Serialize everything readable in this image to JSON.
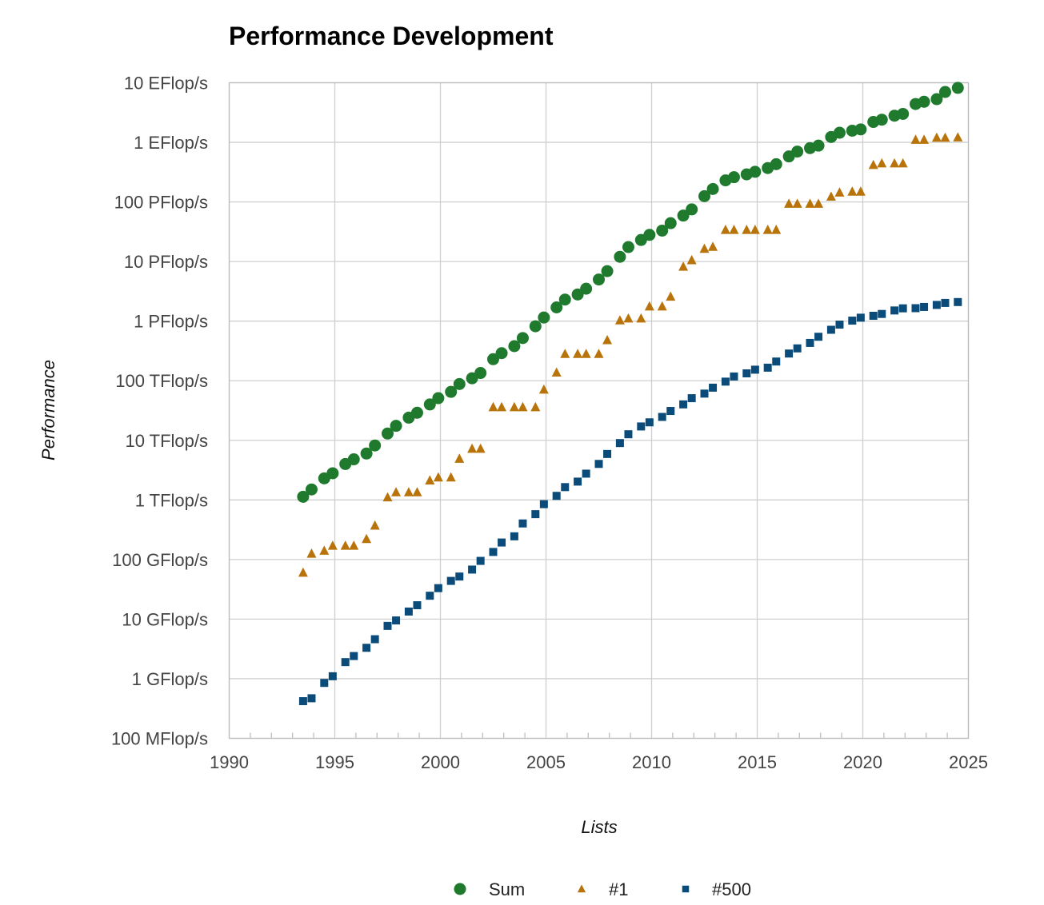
{
  "chart_data": {
    "type": "scatter",
    "title": "Performance Development",
    "xlabel": "Lists",
    "ylabel": "Performance",
    "xlim": [
      1990,
      2025
    ],
    "x_ticks": [
      "1990",
      "1995",
      "2000",
      "2005",
      "2010",
      "2015",
      "2020",
      "2025"
    ],
    "y_scale": "log",
    "ylim_gflops": [
      0.1,
      10000000000
    ],
    "y_ticks": [
      {
        "value": 0.1,
        "label": "100 MFlop/s"
      },
      {
        "value": 1,
        "label": "1 GFlop/s"
      },
      {
        "value": 10,
        "label": "10 GFlop/s"
      },
      {
        "value": 100,
        "label": "100 GFlop/s"
      },
      {
        "value": 1000,
        "label": "1 TFlop/s"
      },
      {
        "value": 10000,
        "label": "10 TFlop/s"
      },
      {
        "value": 100000,
        "label": "100 TFlop/s"
      },
      {
        "value": 1000000,
        "label": "1 PFlop/s"
      },
      {
        "value": 10000000,
        "label": "10 PFlop/s"
      },
      {
        "value": 100000000,
        "label": "100 PFlop/s"
      },
      {
        "value": 1000000000,
        "label": "1 EFlop/s"
      },
      {
        "value": 10000000000,
        "label": "10 EFlop/s"
      }
    ],
    "y_unit": "GFlop/s",
    "grid": true,
    "legend_position": "bottom",
    "x": [
      1993.5,
      1993.9,
      1994.5,
      1994.9,
      1995.5,
      1995.9,
      1996.5,
      1996.9,
      1997.5,
      1997.9,
      1998.5,
      1998.9,
      1999.5,
      1999.9,
      2000.5,
      2000.9,
      2001.5,
      2001.9,
      2002.5,
      2002.9,
      2003.5,
      2003.9,
      2004.5,
      2004.9,
      2005.5,
      2005.9,
      2006.5,
      2006.9,
      2007.5,
      2007.9,
      2008.5,
      2008.9,
      2009.5,
      2009.9,
      2010.5,
      2010.9,
      2011.5,
      2011.9,
      2012.5,
      2012.9,
      2013.5,
      2013.9,
      2014.5,
      2014.9,
      2015.5,
      2015.9,
      2016.5,
      2016.9,
      2017.5,
      2017.9,
      2018.5,
      2018.9,
      2019.5,
      2019.9,
      2020.5,
      2020.9,
      2021.5,
      2021.9,
      2022.5,
      2022.9,
      2023.5,
      2023.9,
      2024.5
    ],
    "series": [
      {
        "name": "Sum",
        "marker": "circle",
        "color": "#1f7a2e",
        "values": [
          1130,
          1500,
          2300,
          2800,
          4000,
          4800,
          6000,
          8200,
          13000,
          17500,
          24000,
          29000,
          40000,
          51000,
          65000,
          88000,
          110000,
          135000,
          230000,
          290000,
          380000,
          520000,
          820000,
          1150000,
          1700000,
          2300000,
          2800000,
          3500000,
          5000000,
          6900000,
          12000000,
          17500000,
          23000000,
          28000000,
          33000000,
          44000000,
          59000000,
          75000000,
          125000000,
          165000000,
          230000000,
          260000000,
          290000000,
          320000000,
          370000000,
          430000000,
          580000000,
          700000000,
          800000000,
          880000000,
          1230000000,
          1450000000,
          1570000000,
          1650000000,
          2200000000,
          2400000000,
          2800000000,
          3000000000,
          4400000000,
          4800000000,
          5300000000,
          7000000000,
          8200000000
        ]
      },
      {
        "name": "#1",
        "marker": "triangle",
        "color": "#b8740a",
        "values": [
          60,
          125,
          140,
          170,
          170,
          170,
          220,
          370,
          1100,
          1340,
          1340,
          1340,
          2120,
          2380,
          2380,
          4900,
          7200,
          7200,
          35900,
          35900,
          35900,
          35900,
          35900,
          70700,
          136800,
          280600,
          280600,
          280600,
          280600,
          478200,
          1026000,
          1105000,
          1105000,
          1759000,
          1759000,
          2566000,
          8162000,
          10510000,
          16320000,
          17590000,
          33860000,
          33860000,
          33860000,
          33860000,
          33860000,
          33860000,
          93010000,
          93010000,
          93010000,
          93010000,
          122300000,
          143500000,
          148600000,
          148600000,
          415500000,
          442000000,
          442000000,
          442000000,
          1102000000,
          1102000000,
          1194000000,
          1194000000,
          1206000000
        ]
      },
      {
        "name": "#500",
        "marker": "square",
        "color": "#0b4b7a",
        "values": [
          0.42,
          0.47,
          0.85,
          1.1,
          1.9,
          2.4,
          3.3,
          4.6,
          7.7,
          9.5,
          13.4,
          17.1,
          24.7,
          33.1,
          43.8,
          51.8,
          67.8,
          94.9,
          134,
          193,
          245,
          403,
          577,
          849,
          1170,
          1640,
          2030,
          2760,
          4020,
          5900,
          9000,
          12640,
          17090,
          20050,
          24700,
          31100,
          40100,
          50940,
          60800,
          76500,
          96600,
          117800,
          133000,
          153300,
          165600,
          210000,
          286000,
          349000,
          431000,
          547000,
          716000,
          874000,
          1020000,
          1142000,
          1230000,
          1320000,
          1510000,
          1640000,
          1650000,
          1730000,
          1870000,
          2020000,
          2090000
        ]
      }
    ]
  },
  "legend": [
    {
      "label": "Sum",
      "marker": "circle",
      "color": "#1f7a2e"
    },
    {
      "label": "#1",
      "marker": "triangle",
      "color": "#b8740a"
    },
    {
      "label": "#500",
      "marker": "square",
      "color": "#0b4b7a"
    }
  ]
}
